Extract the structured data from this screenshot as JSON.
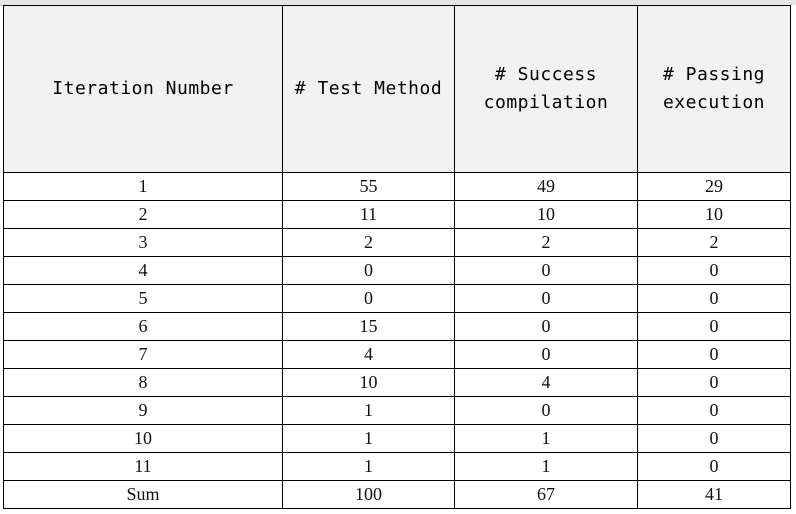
{
  "table": {
    "headers": [
      {
        "lines": [
          "Iteration Number"
        ]
      },
      {
        "lines": [
          "# Test Method"
        ]
      },
      {
        "lines": [
          "# Success",
          "compilation"
        ]
      },
      {
        "lines": [
          "# Passing",
          "execution"
        ]
      }
    ],
    "rows": [
      [
        "1",
        "55",
        "49",
        "29"
      ],
      [
        "2",
        "11",
        "10",
        "10"
      ],
      [
        "3",
        "2",
        "2",
        "2"
      ],
      [
        "4",
        "0",
        "0",
        "0"
      ],
      [
        "5",
        "0",
        "0",
        "0"
      ],
      [
        "6",
        "15",
        "0",
        "0"
      ],
      [
        "7",
        "4",
        "0",
        "0"
      ],
      [
        "8",
        "10",
        "4",
        "0"
      ],
      [
        "9",
        "1",
        "0",
        "0"
      ],
      [
        "10",
        "1",
        "1",
        "0"
      ],
      [
        "11",
        "1",
        "1",
        "0"
      ],
      [
        "Sum",
        "100",
        "67",
        "41"
      ]
    ]
  },
  "colors": {
    "header_bg": "#f2f2f2",
    "border": "#000000",
    "cell_bg": "#ffffff"
  }
}
